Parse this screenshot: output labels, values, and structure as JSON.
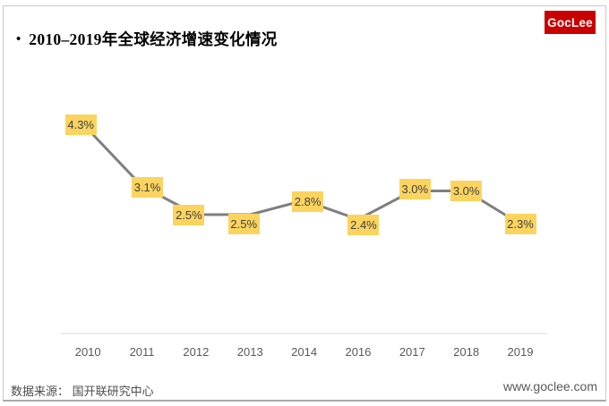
{
  "header": {
    "bullet": "•",
    "title": "2010–2019年全球经济增速变化情况",
    "logo_text": "GocLee"
  },
  "footer": {
    "source": "数据来源： 国开联研究中心",
    "url": "www.goclee.com"
  },
  "colors": {
    "logo_bg": "#C90000",
    "logo_text": "#FFFFFF",
    "series_line": "#7F7F7F",
    "label_bg": "#FBD45F",
    "label_text": "#3F3F3F",
    "axis_line": "#D9D9D9",
    "tick_text": "#595959",
    "card_border": "#C9C9C9"
  },
  "chart_data": {
    "type": "line",
    "title": "2010–2019年全球经济增速变化情况",
    "categories": [
      "2010",
      "2011",
      "2012",
      "2013",
      "2014",
      "2016",
      "2017",
      "2018",
      "2019"
    ],
    "values": [
      4.3,
      3.1,
      2.5,
      2.5,
      2.8,
      2.4,
      3.0,
      3.0,
      2.3
    ],
    "point_labels": [
      "4.3%",
      "3.1%",
      "2.5%",
      "2.5%",
      "2.8%",
      "2.4%",
      "3.0%",
      "3.0%",
      "2.3%"
    ],
    "xlabel": "",
    "ylabel": "",
    "unit": "%",
    "ylim": [
      0,
      5
    ],
    "grid": false,
    "legend": false,
    "label_style": "boxed",
    "legend_position": "none"
  }
}
